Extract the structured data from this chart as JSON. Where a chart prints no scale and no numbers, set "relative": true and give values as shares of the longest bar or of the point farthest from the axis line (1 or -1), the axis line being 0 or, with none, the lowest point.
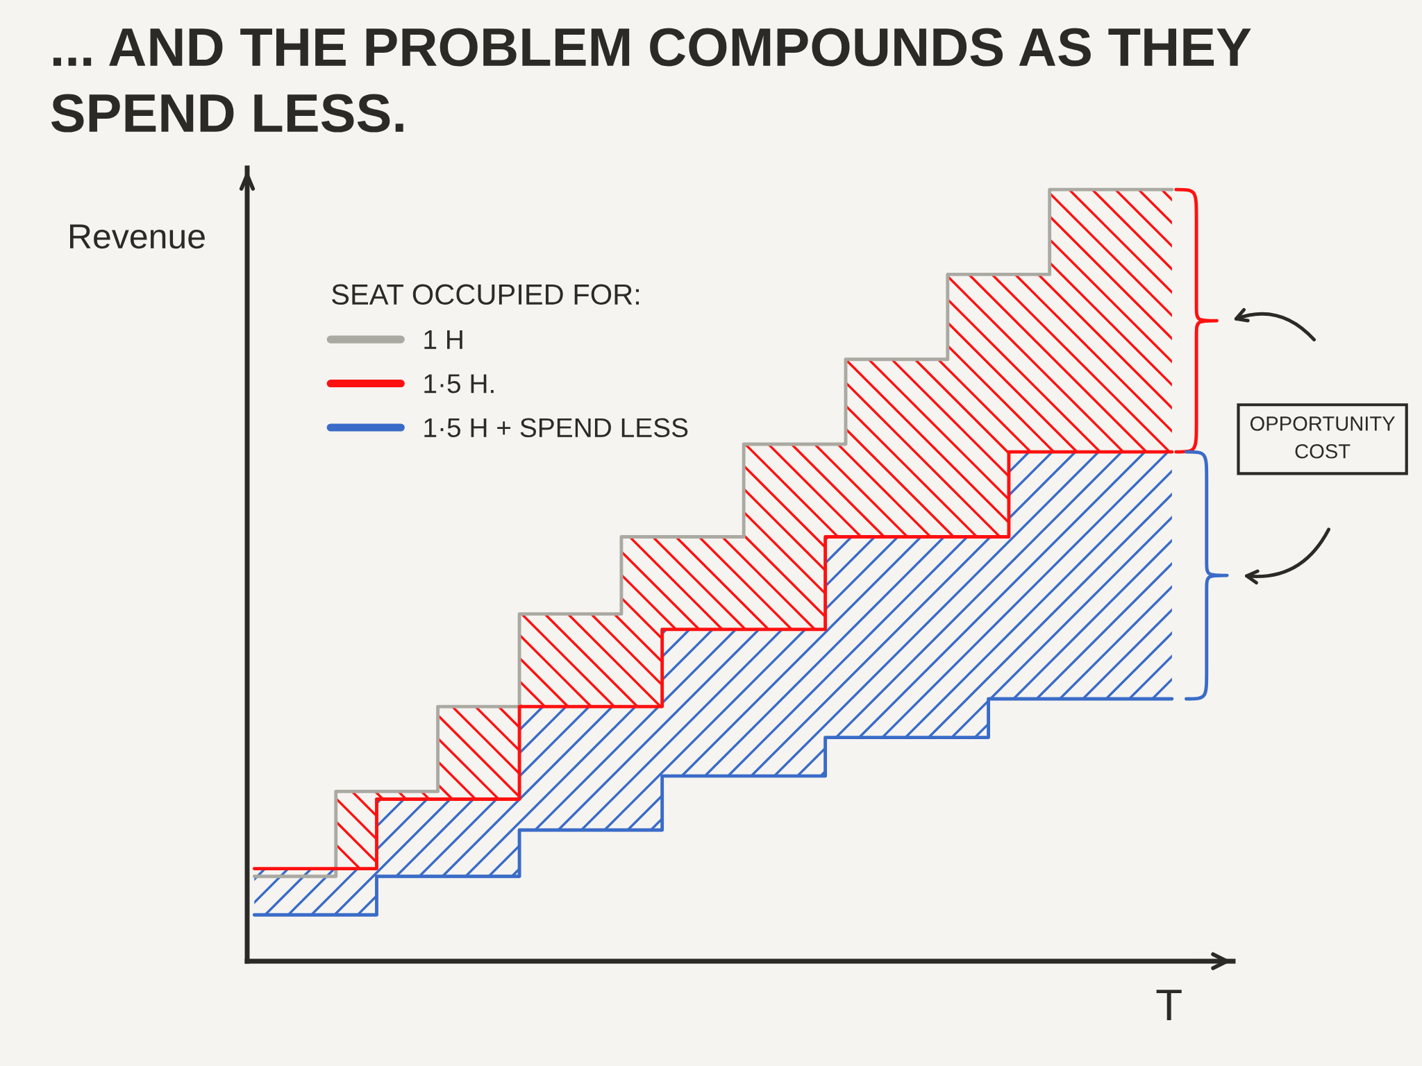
{
  "chart_data": {
    "type": "step",
    "title": "... AND THE PROBLEM COMPOUNDS AS THEY SPEND LESS.",
    "xlabel": "T",
    "ylabel": "Revenue",
    "legend_title": "SEAT OCCUPIED FOR:",
    "annotations": [
      "OPPORTUNITY COST"
    ],
    "categories": [
      null,
      null,
      null,
      null,
      null,
      null,
      null,
      null,
      null,
      null,
      null,
      null,
      null,
      null,
      null,
      null,
      null,
      null,
      null,
      null,
      null,
      null,
      null,
      null,
      null,
      null,
      null,
      null,
      null,
      null,
      null,
      null,
      null,
      null,
      null,
      null,
      null,
      null,
      null,
      null,
      null,
      null,
      null,
      null,
      null,
      null
    ],
    "relative": true,
    "legend": "top left",
    "series": [
      {
        "name": "1 H",
        "color": "#aaa9a2",
        "values": [
          0.11,
          0.11,
          0.11,
          0.11,
          0.22,
          0.22,
          0.22,
          0.22,
          0.22,
          0.33,
          0.33,
          0.33,
          0.33,
          0.45,
          0.45,
          0.45,
          0.45,
          0.45,
          0.55,
          0.55,
          0.55,
          0.55,
          0.55,
          0.55,
          0.67,
          0.67,
          0.67,
          0.67,
          0.67,
          0.78,
          0.78,
          0.78,
          0.78,
          0.78,
          0.89,
          0.89,
          0.89,
          0.89,
          0.89,
          1.0,
          1.0,
          1.0,
          1.0,
          1.0,
          1.0,
          1.0
        ]
      },
      {
        "name": "1·5 H.",
        "color": "#ff1010",
        "values": [
          0.12,
          0.12,
          0.12,
          0.12,
          0.12,
          0.12,
          0.21,
          0.21,
          0.21,
          0.21,
          0.21,
          0.21,
          0.21,
          0.33,
          0.33,
          0.33,
          0.33,
          0.33,
          0.33,
          0.33,
          0.43,
          0.43,
          0.43,
          0.43,
          0.43,
          0.43,
          0.43,
          0.43,
          0.55,
          0.55,
          0.55,
          0.55,
          0.55,
          0.55,
          0.55,
          0.55,
          0.55,
          0.66,
          0.66,
          0.66,
          0.66,
          0.66,
          0.66,
          0.66,
          0.66,
          0.66
        ],
        "lower": [
          0.12,
          0.12,
          0.12,
          0.12,
          0.12,
          0.12,
          0.21,
          0.21,
          0.21,
          0.21,
          0.21,
          0.21,
          0.21,
          0.33,
          0.33,
          0.33,
          0.33,
          0.33,
          0.33,
          0.33,
          0.43,
          0.43,
          0.43,
          0.43,
          0.43,
          0.43,
          0.43,
          0.43,
          0.55,
          0.55,
          0.55,
          0.55,
          0.55,
          0.55,
          0.55,
          0.55,
          0.55,
          0.66,
          0.66,
          0.66,
          0.66,
          0.66,
          0.66,
          0.66,
          0.66,
          0.66
        ],
        "upper": [
          0.12,
          0.12,
          0.12,
          0.12,
          0.22,
          0.22,
          0.22,
          0.22,
          0.22,
          0.33,
          0.33,
          0.33,
          0.33,
          0.45,
          0.45,
          0.45,
          0.45,
          0.45,
          0.55,
          0.55,
          0.55,
          0.55,
          0.55,
          0.55,
          0.67,
          0.67,
          0.67,
          0.67,
          0.67,
          0.78,
          0.78,
          0.78,
          0.78,
          0.78,
          0.89,
          0.89,
          0.89,
          0.89,
          0.89,
          1.0,
          1.0,
          1.0,
          1.0,
          1.0,
          1.0,
          1.0
        ]
      },
      {
        "name": "1·5 H + SPEND LESS",
        "color": "#3a6bc8",
        "values": [
          0.06,
          0.06,
          0.06,
          0.06,
          0.06,
          0.06,
          0.11,
          0.11,
          0.11,
          0.11,
          0.11,
          0.11,
          0.11,
          0.17,
          0.17,
          0.17,
          0.17,
          0.17,
          0.17,
          0.17,
          0.24,
          0.24,
          0.24,
          0.24,
          0.24,
          0.24,
          0.24,
          0.24,
          0.29,
          0.29,
          0.29,
          0.29,
          0.29,
          0.29,
          0.29,
          0.29,
          0.34,
          0.34,
          0.34,
          0.34,
          0.34,
          0.34,
          0.34,
          0.34,
          0.34,
          0.34
        ],
        "lower": [
          0.06,
          0.06,
          0.06,
          0.06,
          0.06,
          0.06,
          0.11,
          0.11,
          0.11,
          0.11,
          0.11,
          0.11,
          0.11,
          0.17,
          0.17,
          0.17,
          0.17,
          0.17,
          0.17,
          0.17,
          0.24,
          0.24,
          0.24,
          0.24,
          0.24,
          0.24,
          0.24,
          0.24,
          0.29,
          0.29,
          0.29,
          0.29,
          0.29,
          0.29,
          0.29,
          0.29,
          0.34,
          0.34,
          0.34,
          0.34,
          0.34,
          0.34,
          0.34,
          0.34,
          0.34,
          0.34
        ],
        "upper": [
          0.12,
          0.12,
          0.12,
          0.12,
          0.12,
          0.12,
          0.21,
          0.21,
          0.21,
          0.21,
          0.21,
          0.21,
          0.21,
          0.33,
          0.33,
          0.33,
          0.33,
          0.33,
          0.33,
          0.33,
          0.43,
          0.43,
          0.43,
          0.43,
          0.43,
          0.43,
          0.43,
          0.43,
          0.55,
          0.55,
          0.55,
          0.55,
          0.55,
          0.55,
          0.55,
          0.55,
          0.55,
          0.66,
          0.66,
          0.66,
          0.66,
          0.66,
          0.66,
          0.66,
          0.66,
          0.66
        ]
      }
    ]
  }
}
